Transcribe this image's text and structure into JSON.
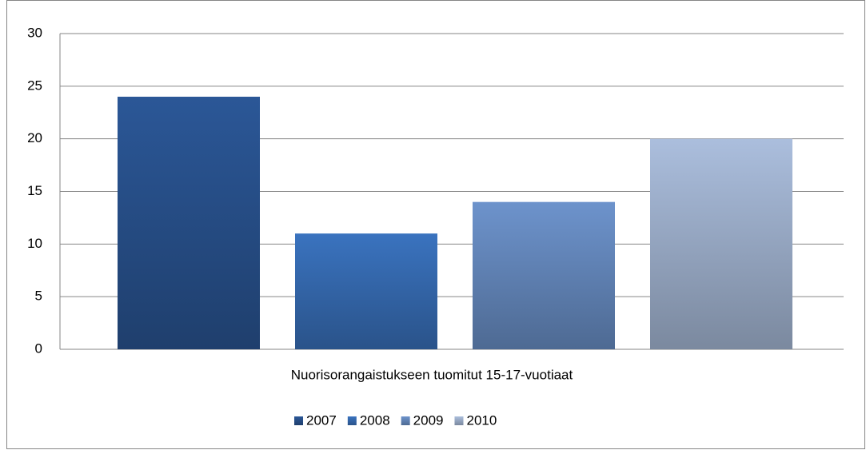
{
  "chart_data": {
    "type": "bar",
    "categories": [
      "Nuorisorangaistukseen tuomitut 15-17-vuotiaat"
    ],
    "series": [
      {
        "name": "2007",
        "color": "#2b5797",
        "values": [
          24
        ]
      },
      {
        "name": "2008",
        "color": "#3a73bf",
        "values": [
          11
        ]
      },
      {
        "name": "2009",
        "color": "#6d93cc",
        "values": [
          14
        ]
      },
      {
        "name": "2010",
        "color": "#abbedd",
        "values": [
          20
        ]
      }
    ],
    "ylim": [
      0,
      30
    ],
    "yticks": [
      0,
      5,
      10,
      15,
      20,
      25,
      30
    ],
    "grid": true,
    "legend": "bottom"
  }
}
